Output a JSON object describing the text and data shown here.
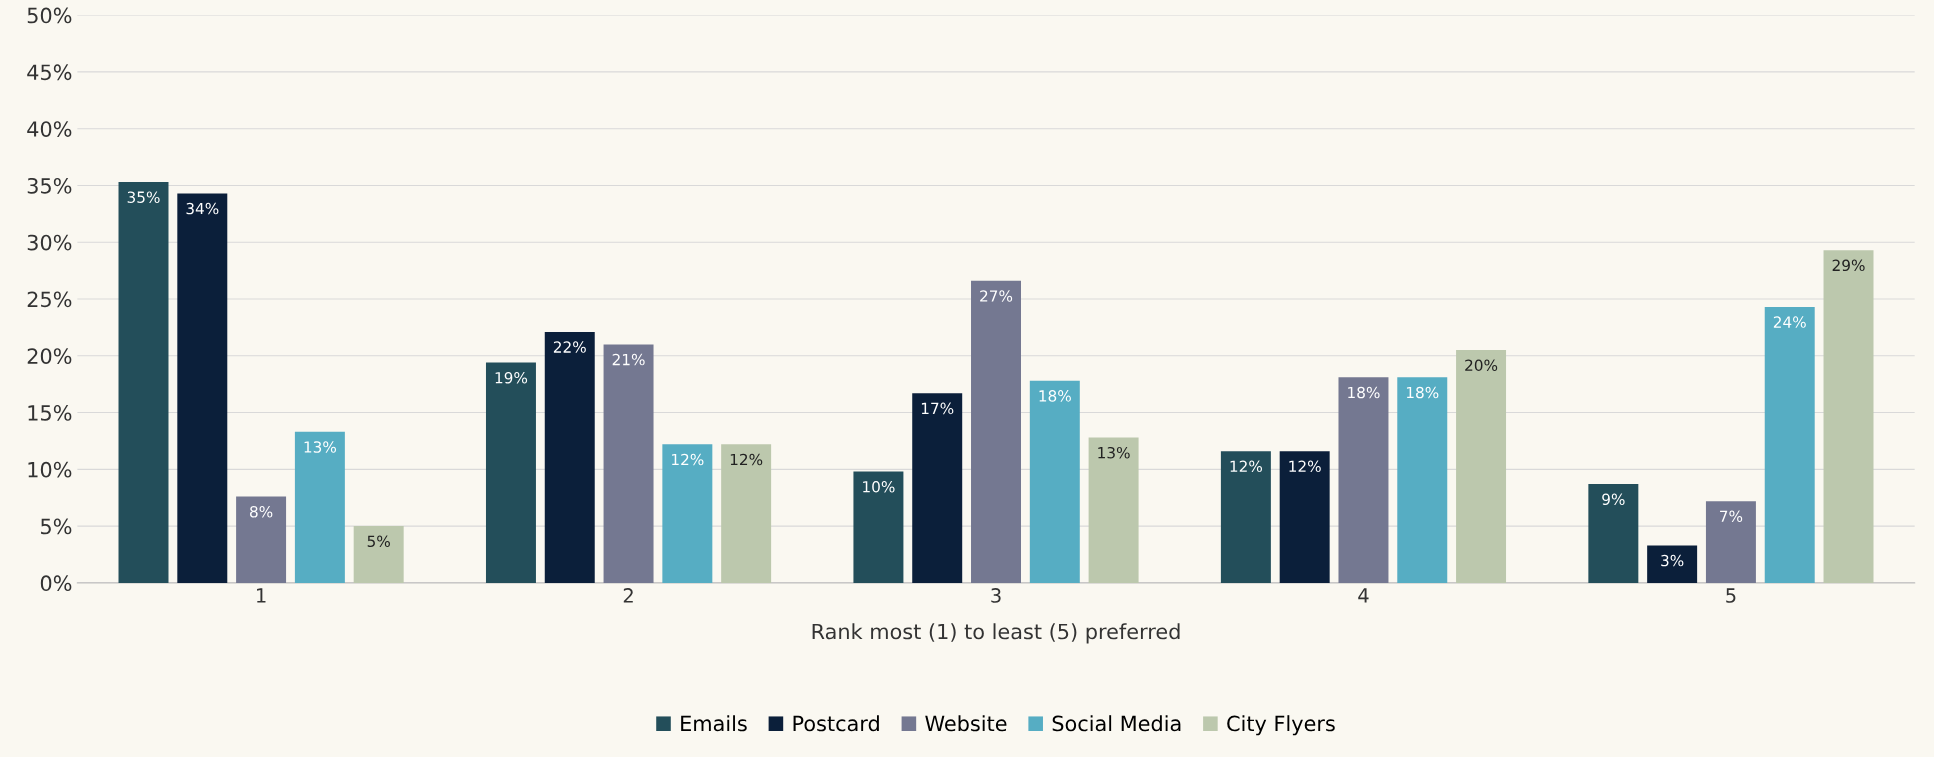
{
  "chart_data": {
    "type": "bar",
    "xlabel": "Rank most (1) to least (5) preferred",
    "categories": [
      "1",
      "2",
      "3",
      "4",
      "5"
    ],
    "series": [
      {
        "name": "Emails",
        "color": "#234e5a",
        "values": [
          35.3,
          19.4,
          9.8,
          11.6,
          8.7
        ],
        "value_labels": [
          "35%",
          "19%",
          "10%",
          "12%",
          "9%"
        ]
      },
      {
        "name": "Postcard",
        "color": "#0b1f3a",
        "values": [
          34.3,
          22.1,
          16.7,
          11.6,
          3.3
        ],
        "value_labels": [
          "34%",
          "22%",
          "17%",
          "12%",
          "3%"
        ]
      },
      {
        "name": "Website",
        "color": "#747891",
        "values": [
          7.6,
          21,
          26.6,
          18.1,
          7.2
        ],
        "value_labels": [
          "8%",
          "21%",
          "27%",
          "18%",
          "7%"
        ]
      },
      {
        "name": "Social Media",
        "color": "#56adc3",
        "values": [
          13.3,
          12.2,
          17.8,
          18.1,
          24.3
        ],
        "value_labels": [
          "13%",
          "12%",
          "18%",
          "18%",
          "24%"
        ]
      },
      {
        "name": "City Flyers",
        "color": "#bcc8ad",
        "values": [
          5,
          12.2,
          12.8,
          20.5,
          29.3
        ],
        "value_labels": [
          "5%",
          "12%",
          "13%",
          "20%",
          "29%"
        ]
      }
    ],
    "ylim": [
      0,
      50
    ],
    "yticks": [
      {
        "value": 0,
        "label": "0%"
      },
      {
        "value": 5,
        "label": "5%"
      },
      {
        "value": 10,
        "label": "10%"
      },
      {
        "value": 15,
        "label": "15%"
      },
      {
        "value": 20,
        "label": "20%"
      },
      {
        "value": 25,
        "label": "25%"
      },
      {
        "value": 30,
        "label": "30%"
      },
      {
        "value": 35,
        "label": "35%"
      },
      {
        "value": 40,
        "label": "40%"
      },
      {
        "value": 45,
        "label": "45%"
      },
      {
        "value": 50,
        "label": "50%"
      }
    ],
    "grid": "y",
    "legend": "bottom"
  }
}
